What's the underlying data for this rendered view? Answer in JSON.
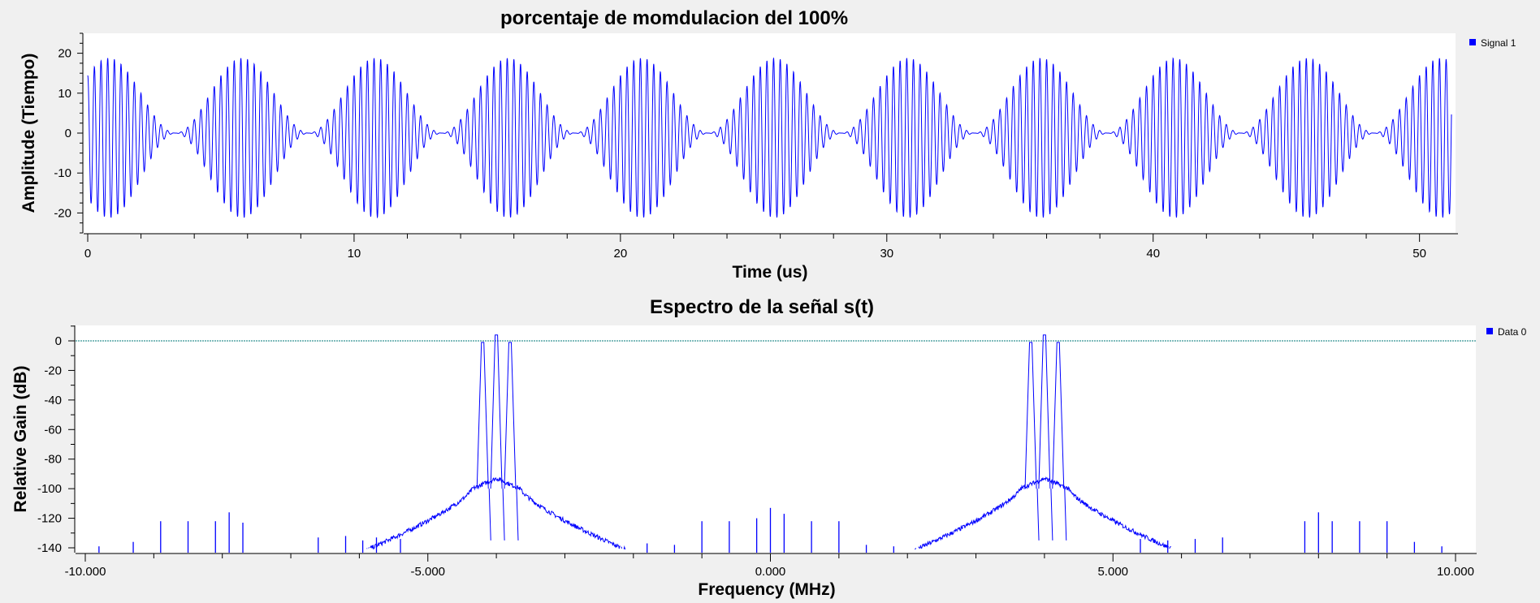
{
  "chart_data": [
    {
      "type": "line",
      "title": "porcentaje de momdulacion del 100%",
      "xlabel": "Time (us)",
      "ylabel": "Amplitude (Tiempo)",
      "xlim": [
        0,
        51.2
      ],
      "ylim": [
        -25,
        25
      ],
      "xticks": [
        "0",
        "10",
        "20",
        "30",
        "40",
        "50"
      ],
      "yticks": [
        "20",
        "10",
        "0",
        "-10",
        "-20"
      ],
      "legend_position": "top-right",
      "grid": false,
      "series": [
        {
          "name": "Signal 1",
          "color": "#0000ff",
          "signal": {
            "model": "amplitude-modulated carrier",
            "peak_amplitude": 20,
            "modulation_index": 1.0,
            "envelope_period_us": 5.0,
            "envelope_first_peak_us": 0.8,
            "carrier_frequency_mhz": 4.0
          }
        }
      ]
    },
    {
      "type": "line",
      "title": "Espectro de la señal s(t)",
      "xlabel": "Frequency (MHz)",
      "ylabel": "Relative Gain (dB)",
      "xlim": [
        -10,
        10
      ],
      "ylim": [
        -140,
        10
      ],
      "xticks": [
        "-10.000",
        "-5.000",
        "0.000",
        "5.000",
        "10.000"
      ],
      "yticks": [
        "0",
        "-20",
        "-40",
        "-60",
        "-80",
        "-100",
        "-120",
        "-140"
      ],
      "legend_position": "top-right",
      "grid": false,
      "reference_line_db": 0,
      "reference_line_color": "#007a7a",
      "series": [
        {
          "name": "Data 0",
          "color": "#0000ff",
          "peaks": [
            {
              "f": -4.2,
              "db": -1
            },
            {
              "f": -4.0,
              "db": 4
            },
            {
              "f": -3.8,
              "db": -1
            },
            {
              "f": 3.8,
              "db": -1
            },
            {
              "f": 4.0,
              "db": 4
            },
            {
              "f": 4.2,
              "db": -1
            }
          ],
          "spurs": [
            {
              "f": -9.8,
              "db": -139
            },
            {
              "f": -9.3,
              "db": -136
            },
            {
              "f": -8.9,
              "db": -122
            },
            {
              "f": -8.5,
              "db": -122
            },
            {
              "f": -8.1,
              "db": -122
            },
            {
              "f": -7.9,
              "db": -116
            },
            {
              "f": -7.7,
              "db": -123
            },
            {
              "f": -6.6,
              "db": -133
            },
            {
              "f": -6.2,
              "db": -132
            },
            {
              "f": -5.95,
              "db": -135
            },
            {
              "f": -5.75,
              "db": -133
            },
            {
              "f": -5.4,
              "db": -134
            },
            {
              "f": -1.8,
              "db": -137
            },
            {
              "f": -1.4,
              "db": -138
            },
            {
              "f": -1.0,
              "db": -122
            },
            {
              "f": -0.6,
              "db": -122
            },
            {
              "f": -0.2,
              "db": -120
            },
            {
              "f": 0.0,
              "db": -113
            },
            {
              "f": 0.2,
              "db": -117
            },
            {
              "f": 0.6,
              "db": -122
            },
            {
              "f": 1.0,
              "db": -122
            },
            {
              "f": 1.4,
              "db": -138
            },
            {
              "f": 1.8,
              "db": -139
            },
            {
              "f": 5.4,
              "db": -134
            },
            {
              "f": 5.8,
              "db": -135
            },
            {
              "f": 6.2,
              "db": -134
            },
            {
              "f": 6.6,
              "db": -133
            },
            {
              "f": 7.8,
              "db": -122
            },
            {
              "f": 8.0,
              "db": -116
            },
            {
              "f": 8.2,
              "db": -122
            },
            {
              "f": 8.6,
              "db": -122
            },
            {
              "f": 9.0,
              "db": -122
            },
            {
              "f": 9.4,
              "db": -136
            },
            {
              "f": 9.8,
              "db": -139
            }
          ]
        }
      ]
    }
  ]
}
